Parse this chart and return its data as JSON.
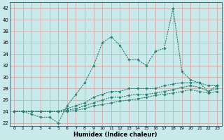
{
  "xlabel": "Humidex (Indice chaleur)",
  "bg_color": "#c8eaea",
  "grid_color": "#d4aaaa",
  "line_color": "#2e7f6f",
  "xlim": [
    -0.5,
    23.5
  ],
  "ylim": [
    21.5,
    43
  ],
  "yticks": [
    22,
    24,
    26,
    28,
    30,
    32,
    34,
    36,
    38,
    40,
    42
  ],
  "xticks": [
    0,
    1,
    2,
    3,
    4,
    5,
    6,
    7,
    8,
    9,
    10,
    11,
    12,
    13,
    14,
    15,
    16,
    17,
    18,
    19,
    20,
    21,
    22,
    23
  ],
  "series1_x": [
    0,
    1,
    2,
    3,
    4,
    5,
    6,
    7,
    8,
    9,
    10,
    11,
    12,
    13,
    14,
    15,
    16,
    17,
    18,
    19,
    20,
    21,
    22,
    23
  ],
  "series1_y": [
    24,
    24,
    23.5,
    23,
    23,
    22,
    25,
    27,
    29,
    32,
    36,
    37,
    35.5,
    33,
    33,
    32,
    34.5,
    35,
    42,
    31,
    29.5,
    29,
    27.5,
    28.5
  ],
  "series2_x": [
    0,
    1,
    2,
    3,
    4,
    5,
    6,
    7,
    8,
    9,
    10,
    11,
    12,
    13,
    14,
    15,
    16,
    17,
    18,
    19,
    20,
    21,
    22,
    23
  ],
  "series2_y": [
    24,
    24,
    24,
    24,
    24,
    24,
    24.5,
    25,
    25.5,
    26.5,
    27,
    27.5,
    27.5,
    28,
    28,
    28,
    28,
    28.5,
    28.8,
    29,
    29,
    29,
    28.5,
    28.5
  ],
  "series3_x": [
    0,
    1,
    2,
    3,
    4,
    5,
    6,
    7,
    8,
    9,
    10,
    11,
    12,
    13,
    14,
    15,
    16,
    17,
    18,
    19,
    20,
    21,
    22,
    23
  ],
  "series3_y": [
    24,
    24,
    24,
    24,
    24,
    24,
    24.2,
    24.5,
    25,
    25.5,
    26,
    26.5,
    26.5,
    26.8,
    27,
    27,
    27.2,
    27.5,
    27.8,
    28.2,
    28.5,
    28.2,
    27.5,
    28.0
  ],
  "series4_x": [
    0,
    1,
    2,
    3,
    4,
    5,
    6,
    7,
    8,
    9,
    10,
    11,
    12,
    13,
    14,
    15,
    16,
    17,
    18,
    19,
    20,
    21,
    22,
    23
  ],
  "series4_y": [
    24,
    24,
    24,
    24,
    24,
    24,
    24,
    24.2,
    24.5,
    25,
    25.2,
    25.5,
    25.8,
    26,
    26.2,
    26.5,
    26.8,
    27,
    27.2,
    27.5,
    27.8,
    27.5,
    27.2,
    27.5
  ],
  "xlabel_fontsize": 6,
  "tick_fontsize": 5
}
